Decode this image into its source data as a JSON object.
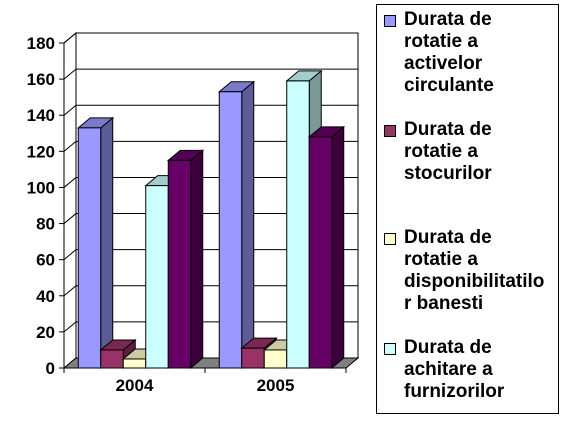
{
  "chart_data": {
    "type": "bar",
    "categories": [
      "2004",
      "2005"
    ],
    "series": [
      {
        "name": "Durata de rotatie a activelor circulante",
        "values": [
          133,
          153
        ],
        "color": "#9999ff",
        "legend_lines": [
          "Durata de",
          "rotatie a",
          "activelor",
          "circulante"
        ]
      },
      {
        "name": "Durata de rotatie a stocurilor",
        "values": [
          10,
          11
        ],
        "color": "#993366",
        "legend_lines": [
          "Durata de",
          "rotatie a",
          "stocurilor"
        ]
      },
      {
        "name": "Durata de rotatie a disponibilitatilor banesti",
        "values": [
          5,
          10
        ],
        "color": "#ffffcc",
        "legend_lines": [
          "Durata de",
          "rotatie a",
          "disponibilitatilo",
          "r banesti"
        ]
      },
      {
        "name": "Durata de achitare a furnizorilor",
        "values": [
          101,
          159
        ],
        "color": "#ccffff",
        "legend_lines": [
          "Durata de",
          "achitare a",
          "furnizorilor"
        ]
      },
      {
        "name": "",
        "values": [
          115,
          128
        ],
        "color": "#660066",
        "legend_lines": []
      }
    ],
    "yticks": [
      "0",
      "20",
      "40",
      "60",
      "80",
      "100",
      "120",
      "140",
      "160",
      "180"
    ],
    "ylim": [
      0,
      180
    ],
    "grid": true,
    "legend_position": "right"
  }
}
